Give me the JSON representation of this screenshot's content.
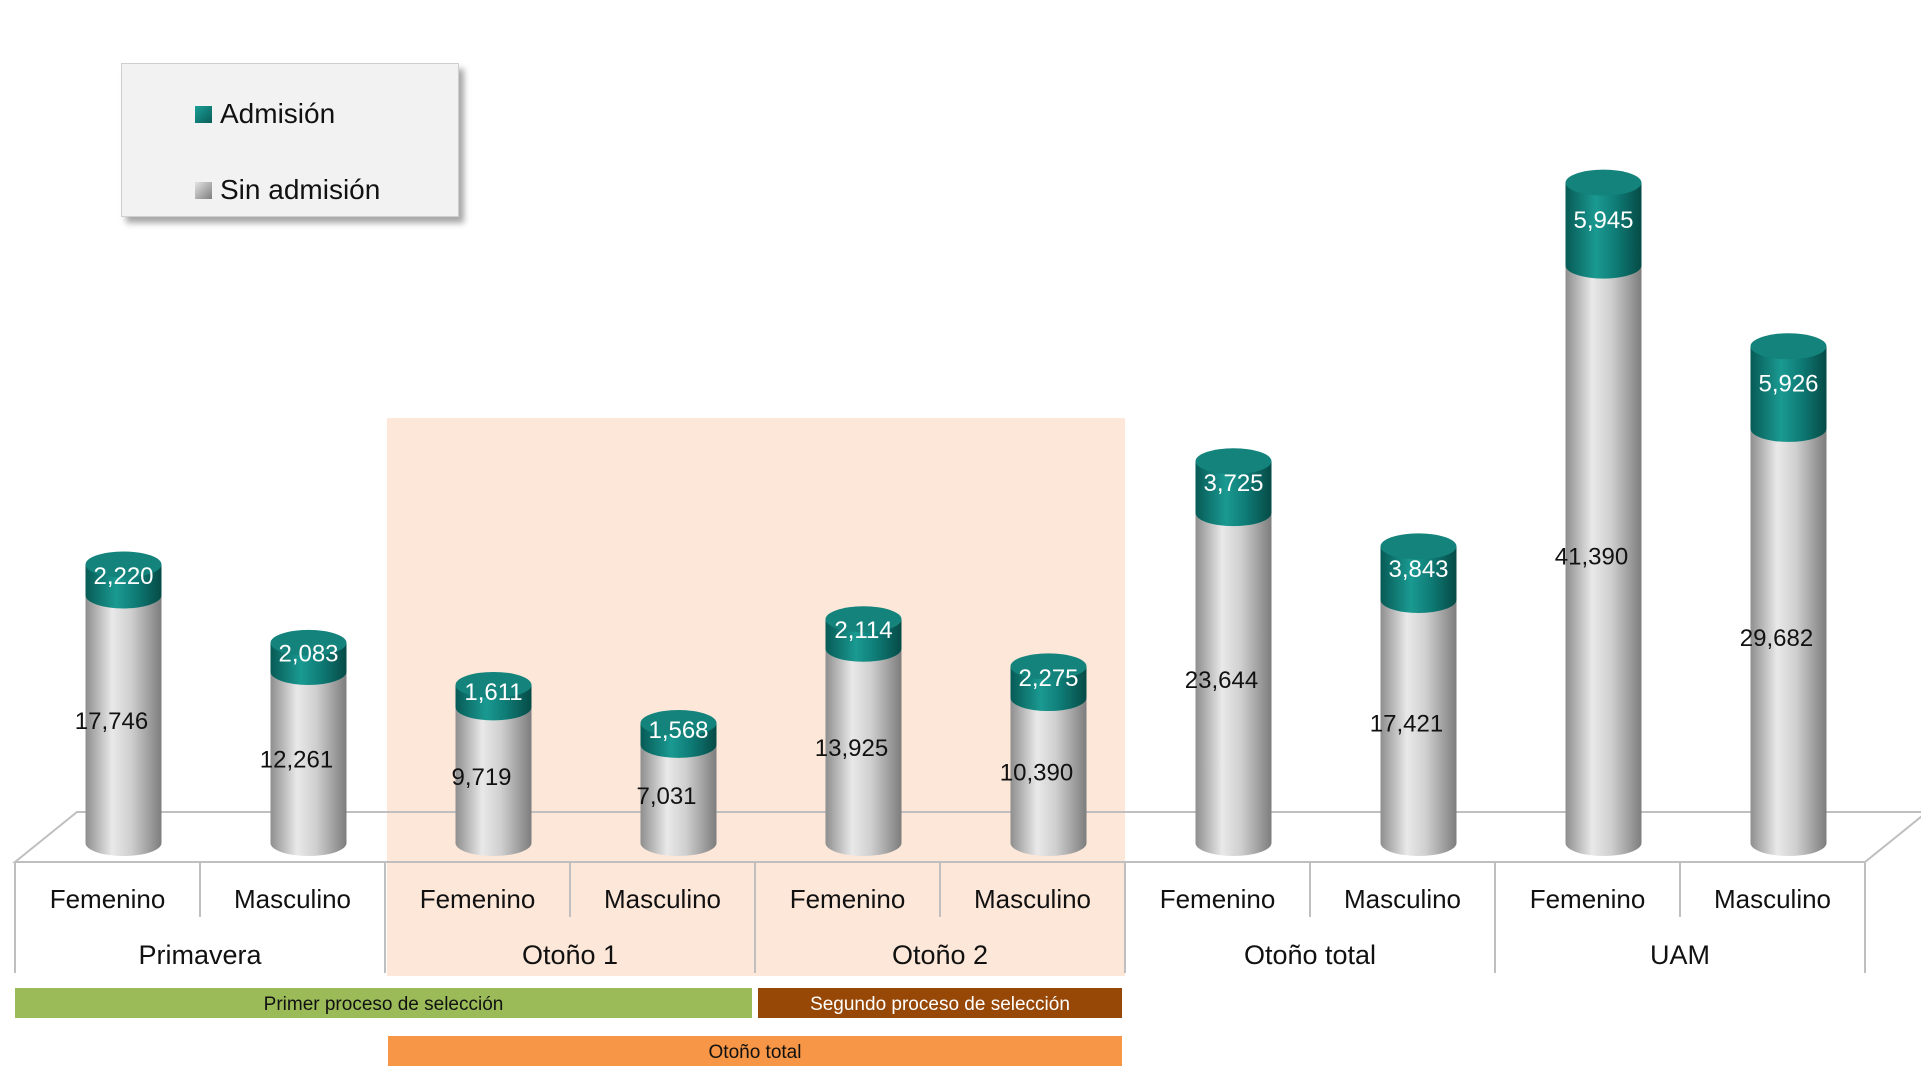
{
  "colors": {
    "admision": "#11807a",
    "admision_dark": "#0a5c57",
    "sin_admision": "#bcbcbc",
    "sin_admision_dark": "#8a8a8a",
    "highlight": "#fde7d9",
    "primer_proceso": "#9bbb59",
    "segundo_proceso": "#974706",
    "otono_total_band": "#f79646"
  },
  "legend": {
    "items": [
      {
        "label": "Admisión",
        "color": "#11807a",
        "icon": "teal-square-icon"
      },
      {
        "label": "Sin admisión",
        "color": "#bcbcbc",
        "icon": "gray-square-icon"
      }
    ]
  },
  "chart_data": {
    "type": "bar",
    "stacked": true,
    "style": "3d-cylinder",
    "categories": [
      "Femenino",
      "Masculino",
      "Femenino",
      "Masculino",
      "Femenino",
      "Masculino",
      "Femenino",
      "Masculino",
      "Femenino",
      "Masculino"
    ],
    "groups": [
      {
        "label": "Primavera",
        "span": [
          0,
          1
        ]
      },
      {
        "label": "Otoño 1",
        "span": [
          2,
          3
        ]
      },
      {
        "label": "Otoño 2",
        "span": [
          4,
          5
        ]
      },
      {
        "label": "Otoño total",
        "span": [
          6,
          7
        ]
      },
      {
        "label": "UAM",
        "span": [
          8,
          9
        ]
      }
    ],
    "series": [
      {
        "name": "Sin admisión",
        "values": [
          17746,
          12261,
          9719,
          7031,
          13925,
          10390,
          23644,
          17421,
          41390,
          29682
        ],
        "labels": [
          "17,746",
          "12,261",
          "9,719",
          "7,031",
          "13,925",
          "10,390",
          "23,644",
          "17,421",
          "41,390",
          "29,682"
        ]
      },
      {
        "name": "Admisión",
        "values": [
          2220,
          2083,
          1611,
          1568,
          2114,
          2275,
          3725,
          3843,
          5945,
          5926
        ],
        "labels": [
          "2,220",
          "2,083",
          "1,611",
          "1,568",
          "2,114",
          "2,275",
          "3,725",
          "3,843",
          "5,945",
          "5,926"
        ]
      }
    ],
    "bands": [
      {
        "label": "Primer proceso de selección",
        "span": [
          0,
          3
        ],
        "row": 0,
        "color": "#9bbb59",
        "text_color": "#111111"
      },
      {
        "label": "Segundo proceso de selección",
        "span": [
          4,
          5
        ],
        "row": 0,
        "color": "#974706",
        "text_color": "#ffffff"
      },
      {
        "label": "Otoño total",
        "span": [
          2,
          5
        ],
        "row": 1,
        "color": "#f79646",
        "text_color": "#111111"
      }
    ],
    "highlight_span": [
      2,
      5
    ],
    "legend_position": "top-left",
    "grid": false
  }
}
